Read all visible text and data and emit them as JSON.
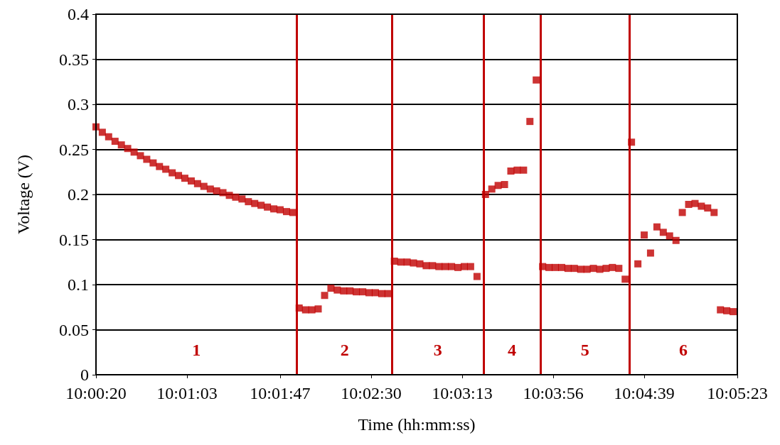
{
  "chart_data": {
    "type": "scatter",
    "xlabel": "Time (hh:mm:ss)",
    "ylabel": "Voltage (V)",
    "marker": "square",
    "grid": "y",
    "xlim": [
      10.00556,
      10.08972
    ],
    "ylim": [
      0,
      0.4
    ],
    "xticks": [
      {
        "value": 10.00556,
        "label": "10:00:20"
      },
      {
        "value": 10.0175,
        "label": "10:01:03"
      },
      {
        "value": 10.02972,
        "label": "10:01:47"
      },
      {
        "value": 10.04167,
        "label": "10:02:30"
      },
      {
        "value": 10.05361,
        "label": "10:03:13"
      },
      {
        "value": 10.06556,
        "label": "10:03:56"
      },
      {
        "value": 10.0775,
        "label": "10:04:39"
      },
      {
        "value": 10.08972,
        "label": "10:05:23"
      }
    ],
    "yticks": [
      0,
      0.05,
      0.1,
      0.15,
      0.2,
      0.25,
      0.3,
      0.35,
      0.4
    ],
    "series": [
      {
        "color": "#c00000",
        "x": [
          10.00556,
          10.00639,
          10.00722,
          10.00806,
          10.00889,
          10.00972,
          10.01056,
          10.01139,
          10.01222,
          10.01306,
          10.01389,
          10.01472,
          10.01556,
          10.01639,
          10.01722,
          10.01806,
          10.01889,
          10.01972,
          10.02056,
          10.02139,
          10.02222,
          10.02306,
          10.02389,
          10.02472,
          10.02556,
          10.02639,
          10.02722,
          10.02806,
          10.02889,
          10.02972,
          10.03056,
          10.03139,
          10.03222,
          10.03306,
          10.03389,
          10.03472,
          10.03556,
          10.03639,
          10.03722,
          10.03806,
          10.03889,
          10.03972,
          10.04056,
          10.04139,
          10.04222,
          10.04306,
          10.04389,
          10.04472,
          10.04556,
          10.04639,
          10.04722,
          10.04806,
          10.04889,
          10.04972,
          10.05056,
          10.05139,
          10.05222,
          10.05306,
          10.05389,
          10.05472,
          10.05556,
          10.05667,
          10.0575,
          10.05833,
          10.05917,
          10.06,
          10.06083,
          10.06167,
          10.0625,
          10.06333,
          10.06417,
          10.065,
          10.06583,
          10.06667,
          10.0675,
          10.06833,
          10.06917,
          10.07,
          10.07083,
          10.07167,
          10.0725,
          10.07333,
          10.07417,
          10.075,
          10.07583,
          10.07667,
          10.0775,
          10.07833,
          10.07917,
          10.08,
          10.08083,
          10.08167,
          10.0825,
          10.08333,
          10.08417,
          10.085,
          10.08583,
          10.08667,
          10.0875,
          10.08833,
          10.08917
        ],
        "values": [
          0.275,
          0.269,
          0.264,
          0.259,
          0.255,
          0.251,
          0.247,
          0.243,
          0.239,
          0.235,
          0.231,
          0.228,
          0.224,
          0.221,
          0.218,
          0.215,
          0.212,
          0.209,
          0.206,
          0.204,
          0.202,
          0.199,
          0.197,
          0.195,
          0.192,
          0.19,
          0.188,
          0.186,
          0.184,
          0.183,
          0.181,
          0.18,
          0.074,
          0.072,
          0.072,
          0.073,
          0.088,
          0.096,
          0.094,
          0.093,
          0.093,
          0.092,
          0.092,
          0.091,
          0.091,
          0.09,
          0.09,
          0.126,
          0.125,
          0.125,
          0.124,
          0.123,
          0.121,
          0.121,
          0.12,
          0.12,
          0.12,
          0.119,
          0.12,
          0.12,
          0.109,
          0.2,
          0.206,
          0.21,
          0.211,
          0.226,
          0.227,
          0.227,
          0.281,
          0.327,
          0.12,
          0.119,
          0.119,
          0.119,
          0.118,
          0.118,
          0.117,
          0.117,
          0.118,
          0.117,
          0.118,
          0.119,
          0.118,
          0.106,
          0.258,
          0.123,
          0.155,
          0.135,
          0.164,
          0.158,
          0.154,
          0.149,
          0.18,
          0.189,
          0.19,
          0.187,
          0.185,
          0.18,
          0.072,
          0.071,
          0.07
        ]
      }
    ],
    "ref_lines": [
      {
        "axis": "x",
        "value": 10.03194,
        "color": "#c00000"
      },
      {
        "axis": "x",
        "value": 10.04444,
        "color": "#c00000"
      },
      {
        "axis": "x",
        "value": 10.05639,
        "color": "#c00000"
      },
      {
        "axis": "x",
        "value": 10.06389,
        "color": "#c00000"
      },
      {
        "axis": "x",
        "value": 10.07556,
        "color": "#c00000"
      }
    ],
    "annotations": [
      "1",
      "2",
      "3",
      "4",
      "5",
      "6"
    ]
  }
}
